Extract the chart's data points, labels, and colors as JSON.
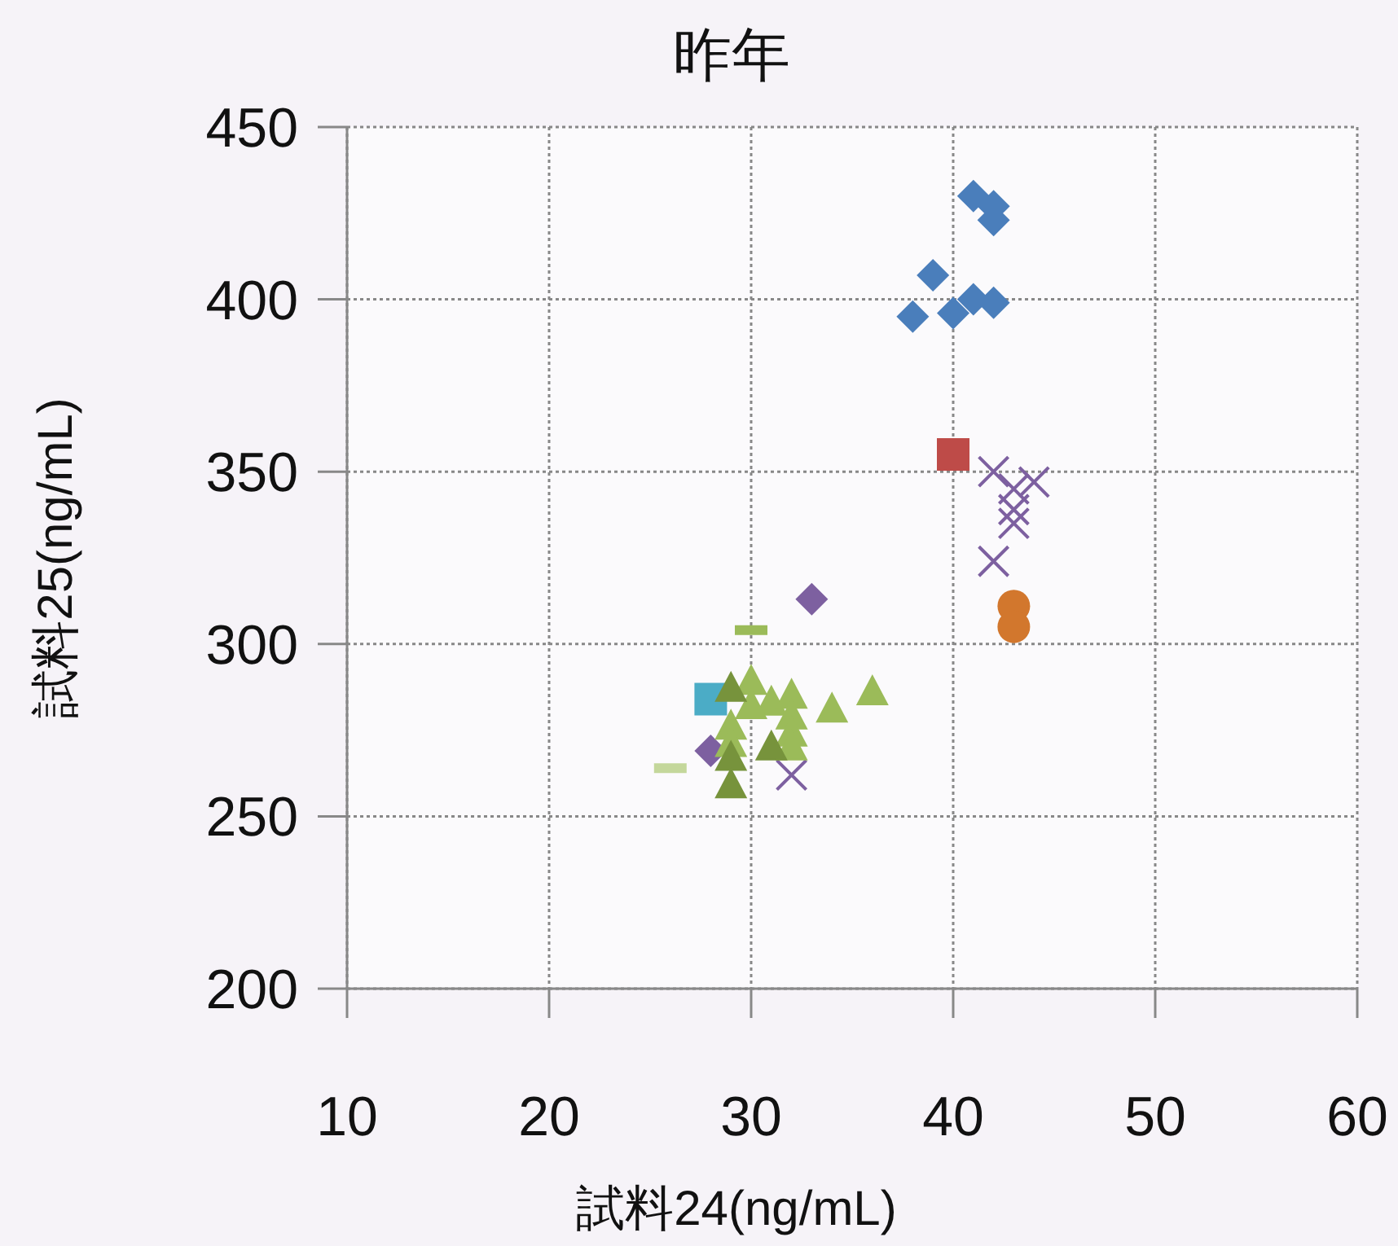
{
  "chart_data": {
    "type": "scatter",
    "title": "昨年",
    "xlabel": "試料24(ng/mL)",
    "ylabel": "試料25(ng/mL)",
    "xlim": [
      10,
      60
    ],
    "ylim": [
      200,
      450
    ],
    "xticks": [
      10,
      20,
      30,
      40,
      50,
      60
    ],
    "yticks": [
      200,
      250,
      300,
      350,
      400,
      450
    ],
    "grid": true,
    "series": [
      {
        "color": "#4a7ebb",
        "marker": "diamond",
        "x": [
          41,
          42,
          42,
          39,
          38,
          40,
          41,
          42
        ],
        "values": [
          430,
          427,
          423,
          407,
          395,
          396,
          400,
          399
        ]
      },
      {
        "color": "#be4b48",
        "marker": "square",
        "x": [
          40
        ],
        "values": [
          355
        ]
      },
      {
        "color": "#7d60a0",
        "marker": "cross",
        "x": [
          42,
          43,
          44,
          43,
          43,
          42,
          32
        ],
        "values": [
          350,
          345,
          347,
          339,
          335,
          324,
          262
        ]
      },
      {
        "color": "#d2772d",
        "marker": "circle",
        "x": [
          43,
          43
        ],
        "values": [
          311,
          305
        ]
      },
      {
        "color": "#7d60a0",
        "marker": "diamond",
        "x": [
          33,
          28
        ],
        "values": [
          313,
          269
        ]
      },
      {
        "color": "#9bbb59",
        "x": [
          30
        ],
        "values": [
          304
        ]
      },
      {
        "color": "#c4d79b",
        "x": [
          26
        ],
        "values": [
          264
        ]
      },
      {
        "color": "#4bacc6",
        "marker": "square",
        "x": [
          28
        ],
        "values": [
          284
        ]
      },
      {
        "color": "#9bbb59",
        "marker": "triangle",
        "x": [
          30,
          31,
          32,
          34,
          36,
          30,
          29,
          32,
          32,
          32,
          29
        ],
        "values": [
          289,
          283,
          285,
          281,
          286,
          282,
          276,
          279,
          274,
          270,
          271
        ]
      },
      {
        "color": "#77933c",
        "marker": "triangle",
        "x": [
          29,
          29,
          29,
          31
        ],
        "values": [
          287,
          267,
          259,
          270
        ]
      }
    ]
  }
}
